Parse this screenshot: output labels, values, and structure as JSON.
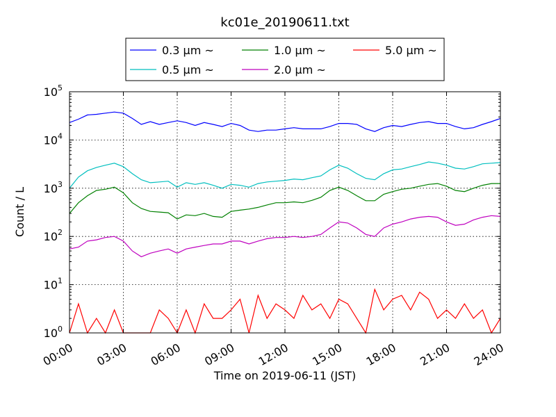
{
  "chart_data": {
    "type": "line",
    "title": "kc01e_20190611.txt",
    "xlabel": "Time on 2019-06-11 (JST)",
    "ylabel": "Count / L",
    "yscale": "log",
    "xlim": [
      "00:00",
      "24:00"
    ],
    "ylim": [
      1,
      100000
    ],
    "grid": true,
    "legend_position": "top-center",
    "x_ticks": [
      "00:00",
      "03:00",
      "06:00",
      "09:00",
      "12:00",
      "15:00",
      "18:00",
      "21:00",
      "24:00"
    ],
    "y_ticks": [
      {
        "base": "10",
        "exp": "0",
        "value": 1
      },
      {
        "base": "10",
        "exp": "1",
        "value": 10
      },
      {
        "base": "10",
        "exp": "2",
        "value": 100
      },
      {
        "base": "10",
        "exp": "3",
        "value": 1000
      },
      {
        "base": "10",
        "exp": "4",
        "value": 10000
      },
      {
        "base": "10",
        "exp": "5",
        "value": 100000
      }
    ],
    "x": [
      "00:00",
      "00:30",
      "01:00",
      "01:30",
      "02:00",
      "02:30",
      "03:00",
      "03:30",
      "04:00",
      "04:30",
      "05:00",
      "05:30",
      "06:00",
      "06:30",
      "07:00",
      "07:30",
      "08:00",
      "08:30",
      "09:00",
      "09:30",
      "10:00",
      "10:30",
      "11:00",
      "11:30",
      "12:00",
      "12:30",
      "13:00",
      "13:30",
      "14:00",
      "14:30",
      "15:00",
      "15:30",
      "16:00",
      "16:30",
      "17:00",
      "17:30",
      "18:00",
      "18:30",
      "19:00",
      "19:30",
      "20:00",
      "20:30",
      "21:00",
      "21:30",
      "22:00",
      "22:30",
      "23:00",
      "23:30",
      "24:00"
    ],
    "series": [
      {
        "name": "0.3 μm ~",
        "color": "#0000ff",
        "values": [
          23000,
          27000,
          33000,
          34000,
          36000,
          38000,
          36000,
          28000,
          21000,
          24000,
          21000,
          23000,
          25000,
          23000,
          20000,
          23000,
          21000,
          19000,
          22000,
          20000,
          16000,
          15000,
          16000,
          16000,
          17000,
          18000,
          17000,
          17000,
          17000,
          19000,
          22000,
          22000,
          21000,
          17000,
          15000,
          18000,
          20000,
          19000,
          21000,
          23000,
          24000,
          22000,
          22000,
          19000,
          17000,
          18000,
          21000,
          24000,
          28000
        ]
      },
      {
        "name": "0.5 μm ~",
        "color": "#00bfbf",
        "values": [
          1000,
          1700,
          2300,
          2700,
          3000,
          3300,
          2800,
          2000,
          1500,
          1300,
          1350,
          1400,
          1050,
          1300,
          1200,
          1300,
          1150,
          1000,
          1200,
          1150,
          1050,
          1250,
          1350,
          1400,
          1450,
          1550,
          1500,
          1650,
          1800,
          2400,
          3000,
          2600,
          2000,
          1600,
          1500,
          2000,
          2400,
          2500,
          2800,
          3100,
          3500,
          3300,
          3000,
          2600,
          2500,
          2800,
          3200,
          3300,
          3400
        ]
      },
      {
        "name": "1.0 μm ~",
        "color": "#008000",
        "values": [
          300,
          500,
          700,
          900,
          950,
          1050,
          800,
          500,
          380,
          330,
          320,
          310,
          230,
          280,
          270,
          300,
          260,
          250,
          330,
          350,
          370,
          400,
          450,
          500,
          500,
          520,
          500,
          560,
          650,
          900,
          1050,
          900,
          700,
          550,
          550,
          750,
          850,
          950,
          1000,
          1100,
          1200,
          1250,
          1100,
          900,
          850,
          1000,
          1150,
          1250,
          1250
        ]
      },
      {
        "name": "2.0 μm ~",
        "color": "#bf00bf",
        "values": [
          55,
          60,
          80,
          85,
          95,
          100,
          80,
          50,
          38,
          45,
          50,
          55,
          45,
          55,
          60,
          65,
          70,
          70,
          80,
          80,
          70,
          80,
          90,
          95,
          95,
          100,
          95,
          100,
          110,
          150,
          200,
          190,
          150,
          110,
          100,
          150,
          180,
          200,
          230,
          250,
          260,
          250,
          200,
          170,
          180,
          220,
          250,
          270,
          260
        ]
      },
      {
        "name": "5.0 μm ~",
        "color": "#ff0000",
        "values": [
          1,
          4,
          1,
          2,
          1,
          3,
          1,
          1,
          1,
          1,
          3,
          2,
          1,
          3,
          1,
          4,
          2,
          2,
          3,
          5,
          1,
          6,
          2,
          4,
          3,
          2,
          6,
          3,
          4,
          2,
          5,
          4,
          2,
          1,
          8,
          3,
          5,
          6,
          3,
          7,
          5,
          2,
          3,
          2,
          4,
          2,
          3,
          1,
          2
        ]
      }
    ]
  }
}
